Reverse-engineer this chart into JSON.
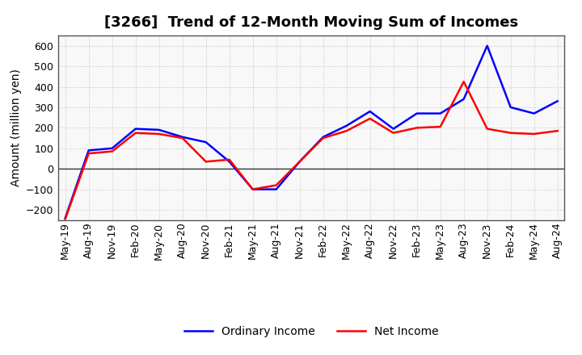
{
  "title": "[3266]  Trend of 12-Month Moving Sum of Incomes",
  "ylabel": "Amount (million yen)",
  "ylim": [
    -250,
    650
  ],
  "yticks": [
    -200,
    -100,
    0,
    100,
    200,
    300,
    400,
    500,
    600
  ],
  "x_labels": [
    "May-19",
    "Aug-19",
    "Nov-19",
    "Feb-20",
    "May-20",
    "Aug-20",
    "Nov-20",
    "Feb-21",
    "May-21",
    "Aug-21",
    "Nov-21",
    "Feb-22",
    "May-22",
    "Aug-22",
    "Nov-22",
    "Feb-23",
    "May-23",
    "Aug-23",
    "Nov-23",
    "Feb-24",
    "May-24",
    "Aug-24"
  ],
  "ordinary_income": [
    -240,
    90,
    100,
    195,
    190,
    155,
    130,
    35,
    -100,
    -100,
    35,
    155,
    210,
    280,
    195,
    270,
    270,
    340,
    600,
    300,
    270,
    330
  ],
  "net_income": [
    -245,
    75,
    85,
    175,
    170,
    150,
    35,
    45,
    -100,
    -80,
    35,
    150,
    185,
    245,
    175,
    200,
    205,
    425,
    195,
    175,
    170,
    185
  ],
  "ordinary_color": "#0000ff",
  "net_color": "#ff0000",
  "legend_ordinary": "Ordinary Income",
  "legend_net": "Net Income",
  "grid_color": "#bbbbbb",
  "bg_color": "#ffffff",
  "plot_bg_color": "#f8f8f8",
  "title_fontsize": 13,
  "label_fontsize": 10,
  "tick_fontsize": 9,
  "line_width": 1.8
}
